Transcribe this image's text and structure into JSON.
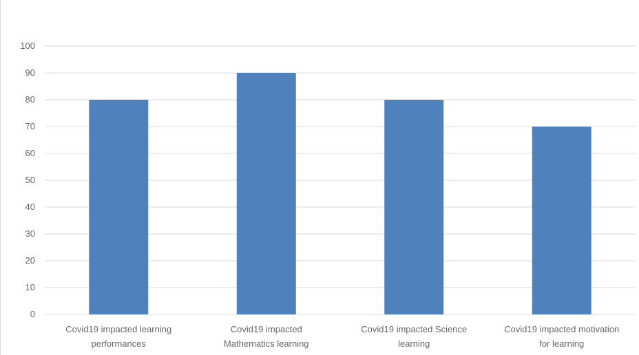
{
  "chart_data": {
    "type": "bar",
    "categories": [
      [
        "Covid19 impacted learning",
        "performances"
      ],
      [
        "Covid19 impacted",
        "Mathematics learning"
      ],
      [
        "Covid19 impacted Science",
        "learning"
      ],
      [
        "Covid19 impacted motivation",
        "for learning"
      ]
    ],
    "values": [
      80,
      90,
      80,
      70
    ],
    "ylim": [
      0,
      100
    ],
    "yticks": [
      0,
      10,
      20,
      30,
      40,
      50,
      60,
      70,
      80,
      90,
      100
    ],
    "grid": true,
    "legend": "none",
    "bar_color": "#4f81bd",
    "grid_color": "#d9d9d9"
  }
}
